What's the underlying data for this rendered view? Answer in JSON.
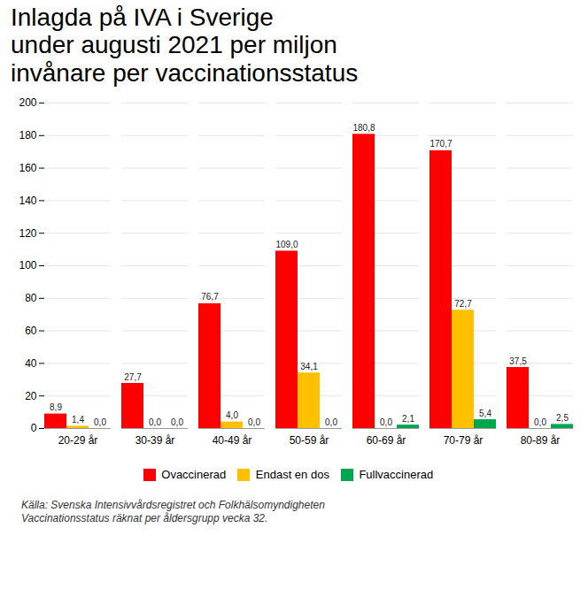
{
  "chart_data": {
    "type": "bar",
    "title": "Inlagda på IVA i Sverige\nunder augusti 2021 per miljon\ninvånare per vaccinationsstatus",
    "annotations": [
      "Källa: Svenska Intensivvårdsregistret och Folkhälsomyndigheten\nVaccinationsstatus räknat per åldersgrupp vecka 32."
    ],
    "categories": [
      "20-29 år",
      "30-39 år",
      "40-49 år",
      "50-59 år",
      "60-69 år",
      "70-79 år",
      "80-89 år"
    ],
    "series": [
      {
        "name": "Ovaccinerad",
        "color": "#FF0000",
        "values": [
          8.9,
          27.7,
          76.7,
          109.0,
          180.8,
          170.7,
          37.5
        ],
        "value_labels": [
          "8,9",
          "27,7",
          "76,7",
          "109,0",
          "180,8",
          "170,7",
          "37,5"
        ]
      },
      {
        "name": "Endast en dos",
        "color": "#FFC000",
        "values": [
          1.4,
          0.0,
          4.0,
          34.1,
          0.0,
          72.7,
          0.0
        ],
        "value_labels": [
          "1,4",
          "0,0",
          "4,0",
          "34,1",
          "0,0",
          "72,7",
          "0,0"
        ]
      },
      {
        "name": "Fullvaccinerad",
        "color": "#00A550",
        "values": [
          0.0,
          0.0,
          0.0,
          0.0,
          2.1,
          5.4,
          2.5
        ],
        "value_labels": [
          "0,0",
          "0,0",
          "0,0",
          "0,0",
          "2,1",
          "5,4",
          "2,5"
        ]
      }
    ],
    "ylim": [
      0,
      200
    ],
    "yticks": [
      0,
      20,
      40,
      60,
      80,
      100,
      120,
      140,
      160,
      180,
      200
    ],
    "grid": true,
    "legend": "bottom",
    "data_labels": true
  }
}
